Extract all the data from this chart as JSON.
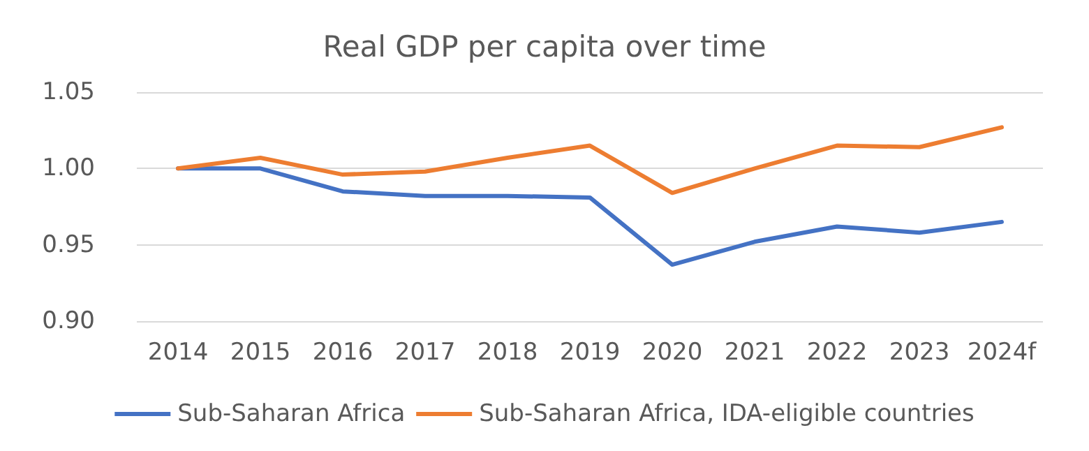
{
  "chart_data": {
    "type": "line",
    "title": "Real GDP per capita over time",
    "categories": [
      "2014",
      "2015",
      "2016",
      "2017",
      "2018",
      "2019",
      "2020",
      "2021",
      "2022",
      "2023",
      "2024f"
    ],
    "series": [
      {
        "name": "Sub-Saharan Africa",
        "color": "#4472c4",
        "values": [
          1.0,
          1.0,
          0.985,
          0.982,
          0.982,
          0.981,
          0.937,
          0.952,
          0.962,
          0.958,
          0.965
        ]
      },
      {
        "name": "Sub-Saharan Africa, IDA-eligible countries",
        "color": "#ed7d31",
        "values": [
          1.0,
          1.007,
          0.996,
          0.998,
          1.007,
          1.015,
          0.984,
          1.0,
          1.015,
          1.014,
          1.027
        ]
      }
    ],
    "ylim": [
      0.9,
      1.05
    ],
    "yticks": [
      {
        "value": 0.9,
        "label": "0.90"
      },
      0.95,
      {
        "value": 1.0,
        "label": "1.00"
      },
      1.05
    ],
    "grid": "y",
    "legend": "bottom",
    "marker": "none",
    "line_style": "solid"
  }
}
